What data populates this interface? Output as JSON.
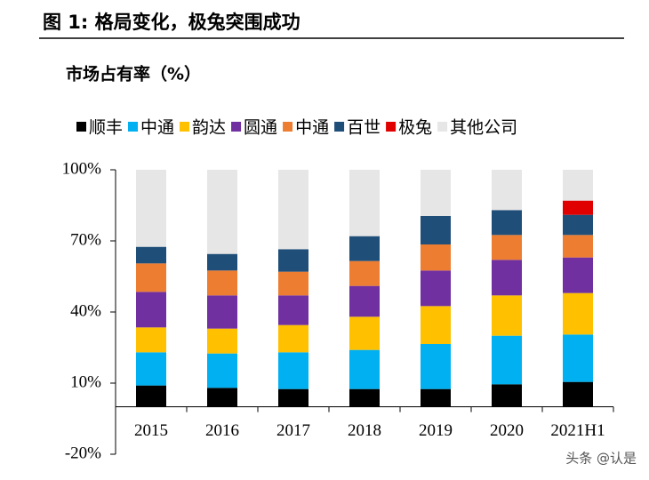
{
  "title": "图 1:  格局变化，极兔突围成功",
  "watermark": "头条 @认是",
  "chart_data": {
    "type": "stacked-bar",
    "title": "市场占有率（%）",
    "categories": [
      "2015",
      "2016",
      "2017",
      "2018",
      "2019",
      "2020",
      "2021H1"
    ],
    "series": [
      {
        "name": "顺丰",
        "color": "#000000",
        "values": [
          9,
          8,
          7.5,
          7.5,
          7.5,
          9.5,
          10.5
        ]
      },
      {
        "name": "中通",
        "color": "#00b0f0",
        "values": [
          14,
          14.5,
          15.5,
          16.5,
          19,
          20.5,
          20
        ]
      },
      {
        "name": "韵达",
        "color": "#ffc000",
        "values": [
          10.5,
          10.5,
          11.5,
          14,
          16,
          17,
          17.5
        ]
      },
      {
        "name": "圆通",
        "color": "#7030a0",
        "values": [
          15,
          14,
          12.5,
          13,
          15,
          15,
          15
        ]
      },
      {
        "name": "中通",
        "color": "#ed7d31",
        "values": [
          12,
          10.5,
          10,
          10.5,
          11,
          10.5,
          9.5
        ]
      },
      {
        "name": "百世",
        "color": "#1f4e79",
        "values": [
          7,
          7,
          9.5,
          10.5,
          12,
          10.5,
          8.5
        ]
      },
      {
        "name": "极兔",
        "color": "#e00000",
        "values": [
          null,
          null,
          null,
          null,
          null,
          null,
          6
        ]
      },
      {
        "name": "其他公司",
        "color": "#e7e6e6",
        "values": [
          32.5,
          35.5,
          33.5,
          28,
          19.5,
          17,
          13
        ]
      }
    ],
    "ylim": [
      -20,
      100
    ],
    "yticks": [
      {
        "value": -20,
        "label": "-20%"
      },
      {
        "value": 10,
        "label": "10%"
      },
      {
        "value": 40,
        "label": "40%"
      },
      {
        "value": 70,
        "label": "70%"
      },
      {
        "value": 100,
        "label": "100%"
      }
    ],
    "legend": "top"
  }
}
